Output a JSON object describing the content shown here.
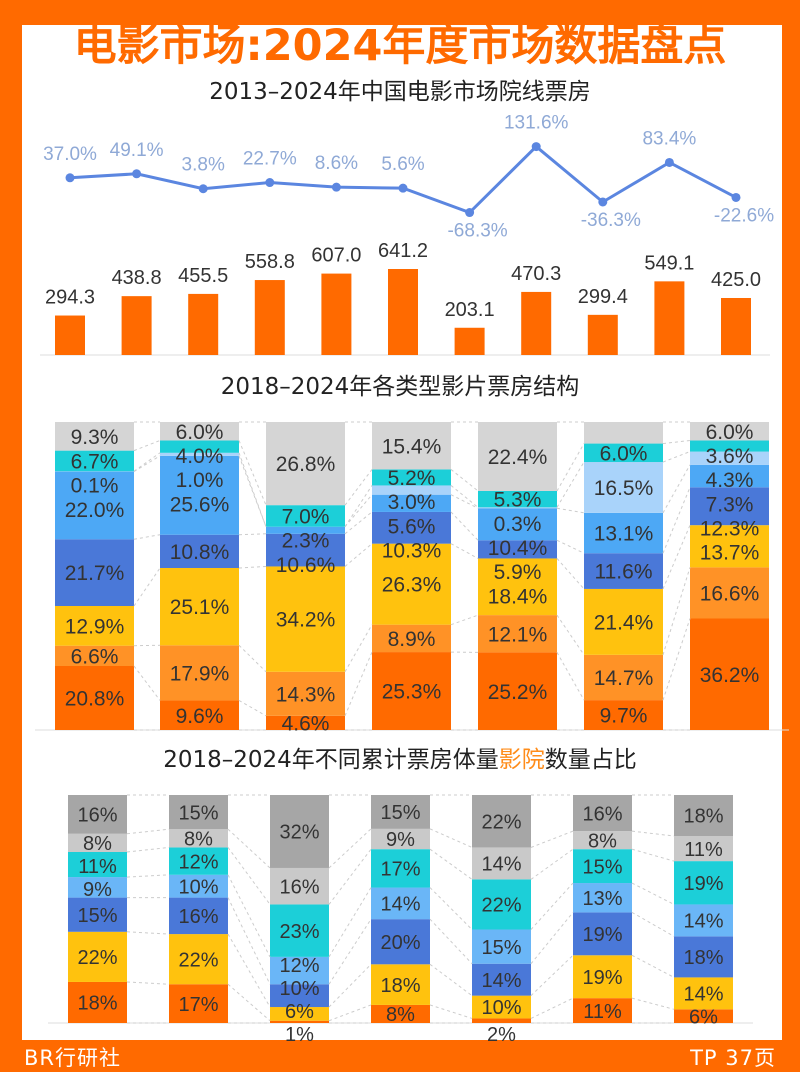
{
  "header": {
    "title": "电影市场:2024年度市场数据盘点"
  },
  "footer": {
    "brand": "BR行研社",
    "page": "TP 37页"
  },
  "colors": {
    "frame": "#FF6A00",
    "line": "#5B86E0",
    "line_label": "#8FA9D6",
    "bar": "#FF6A00"
  },
  "chart_data": [
    {
      "type": "bar+line",
      "title": "2013–2024年中国电影市场院线票房",
      "bar_values": [
        294.3,
        438.8,
        455.5,
        558.8,
        607.0,
        641.2,
        203.1,
        470.3,
        299.4,
        549.1,
        425.0
      ],
      "bar_labels": [
        "294.3",
        "438.8",
        "455.5",
        "558.8",
        "607.0",
        "641.2",
        "203.1",
        "470.3",
        "299.4",
        "549.1",
        "425.0"
      ],
      "line_values": [
        37.0,
        49.1,
        3.8,
        22.7,
        8.6,
        5.6,
        -68.3,
        131.6,
        -36.3,
        83.4,
        -22.6
      ],
      "line_labels": [
        "37.0%",
        "49.1%",
        "3.8%",
        "22.7%",
        "8.6%",
        "5.6%",
        "-68.3%",
        "131.6%",
        "-36.3%",
        "83.4%",
        "-22.6%"
      ]
    },
    {
      "type": "stacked-bar",
      "title": "2018–2024年各类型影片票房结构",
      "stack_order": "bottom-to-top",
      "colors": [
        "#FF6A00",
        "#FF9226",
        "#FFC20E",
        "#4A78D8",
        "#4DA8F5",
        "#A9D3FA",
        "#1CCFD8",
        "#D5D5D5"
      ],
      "columns": [
        [
          20.8,
          6.6,
          12.9,
          21.7,
          22.0,
          0.1,
          6.7,
          9.3
        ],
        [
          9.6,
          17.9,
          25.1,
          10.8,
          25.6,
          1.0,
          4.0,
          6.0
        ],
        [
          4.6,
          14.3,
          34.2,
          10.6,
          2.3,
          null,
          7.0,
          26.8
        ],
        [
          25.3,
          8.9,
          26.3,
          10.3,
          5.6,
          3.0,
          5.2,
          15.4
        ],
        [
          25.2,
          12.1,
          18.4,
          5.9,
          10.4,
          0.3,
          5.3,
          22.4
        ],
        [
          9.7,
          14.7,
          21.4,
          11.6,
          13.1,
          16.5,
          6.0,
          null
        ],
        [
          36.2,
          16.6,
          13.7,
          12.3,
          7.3,
          4.3,
          3.6,
          6.0
        ]
      ]
    },
    {
      "type": "stacked-bar",
      "title_parts": [
        "2018–2024年不同累计票房体量",
        "影院",
        "数量占比"
      ],
      "stack_order": "bottom-to-top",
      "colors": [
        "#FF6A00",
        "#FFC20E",
        "#4A78D8",
        "#6AB6F7",
        "#1CCFD8",
        "#C9C9C9",
        "#A6A6A6"
      ],
      "columns": [
        [
          18,
          22,
          15,
          9,
          11,
          8,
          16
        ],
        [
          17,
          22,
          16,
          10,
          12,
          8,
          15
        ],
        [
          1,
          6,
          10,
          12,
          23,
          16,
          32
        ],
        [
          8,
          18,
          20,
          14,
          17,
          9,
          15
        ],
        [
          2,
          10,
          14,
          15,
          22,
          14,
          22
        ],
        [
          11,
          19,
          19,
          13,
          15,
          8,
          16
        ],
        [
          6,
          14,
          18,
          14,
          19,
          11,
          18
        ]
      ]
    }
  ]
}
